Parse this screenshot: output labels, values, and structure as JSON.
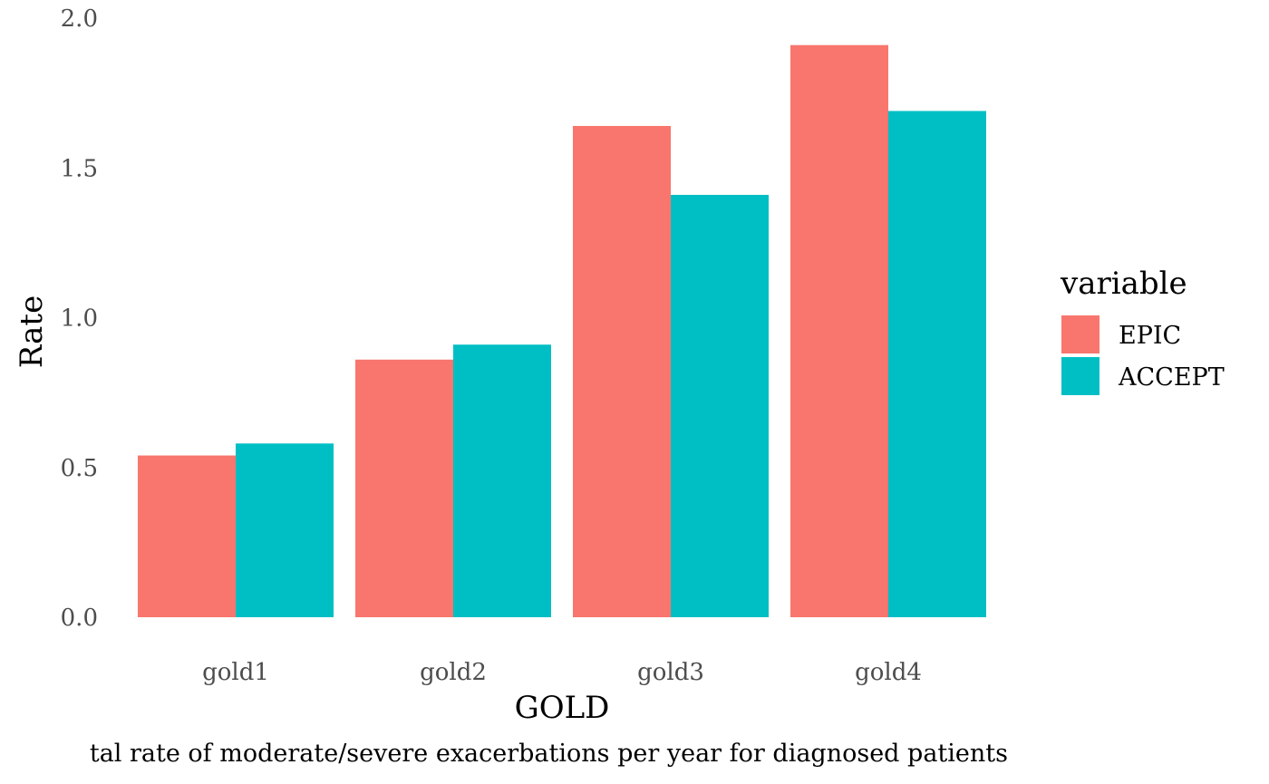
{
  "chart_data": {
    "type": "bar",
    "categories": [
      "gold1",
      "gold2",
      "gold3",
      "gold4"
    ],
    "series": [
      {
        "name": "EPIC",
        "color": "#F8766D",
        "values": [
          0.54,
          0.86,
          1.64,
          1.91
        ]
      },
      {
        "name": "ACCEPT",
        "color": "#00BFC4",
        "values": [
          0.58,
          0.91,
          1.41,
          1.69
        ]
      }
    ],
    "xlabel": "GOLD",
    "ylabel": "Rate",
    "ylim": [
      0,
      2.0
    ],
    "yticks": [
      "0.0",
      "0.5",
      "1.0",
      "1.5",
      "2.0"
    ],
    "legend": {
      "title": "variable",
      "position": "right"
    },
    "grid": false,
    "caption": "tal rate of moderate/severe exacerbations per year for diagnosed patients"
  }
}
